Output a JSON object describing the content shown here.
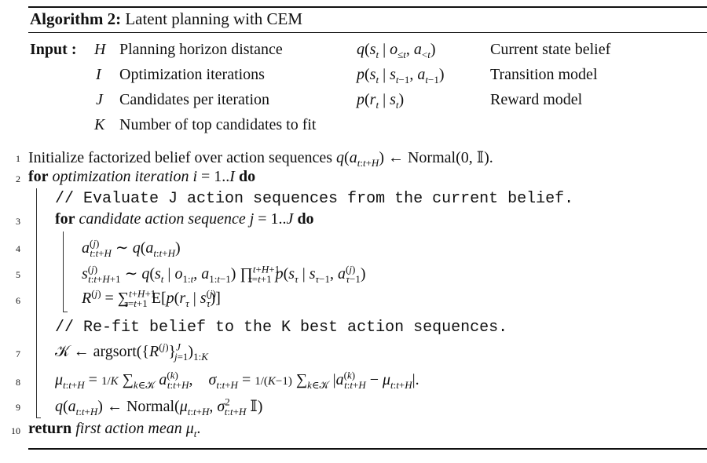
{
  "algorithm": {
    "label": "Algorithm 2:",
    "title": "Latent planning with CEM"
  },
  "inputs": {
    "label": "Input :",
    "rows": [
      {
        "sym": "H",
        "desc": "Planning horizon distance",
        "expr": "q(s_t | o_≤t, a_<t)",
        "expr_desc": "Current state belief"
      },
      {
        "sym": "I",
        "desc": "Optimization iterations",
        "expr": "p(s_t | s_t−1, a_t−1)",
        "expr_desc": "Transition model"
      },
      {
        "sym": "J",
        "desc": "Candidates per iteration",
        "expr": "p(r_t | s_t)",
        "expr_desc": "Reward model"
      },
      {
        "sym": "K",
        "desc": "Number of top candidates to fit",
        "expr": "",
        "expr_desc": ""
      }
    ]
  },
  "lines": [
    {
      "num": "1",
      "text": "Initialize factorized belief over action sequences q(a_t:t+H) ← Normal(0, 𝕀)."
    },
    {
      "num": "2",
      "kw": "for",
      "it": "optimization iteration",
      "text": "i = 1..I",
      "kw2": "do"
    },
    {
      "num": "",
      "comment": "// Evaluate J action sequences from the current belief."
    },
    {
      "num": "3",
      "kw": "for",
      "it": "candidate action sequence",
      "text": "j = 1..J",
      "kw2": "do"
    },
    {
      "num": "4",
      "text": "a^(j)_t:t+H ∼ q(a_t:t+H)"
    },
    {
      "num": "5",
      "text": "s^(j)_t:t+H+1 ∼ q(s_t | o_1:t, a_1:t−1) ∏ p(s_τ | s_τ−1, a^(j)_τ−1)"
    },
    {
      "num": "6",
      "text": "R^(j) = ∑ E[p(r_τ | s^(j)_τ)]"
    },
    {
      "num": "",
      "comment": "// Re-fit belief to the K best action sequences."
    },
    {
      "num": "7",
      "text": "𝒦 ← argsort({R^(j)}^J_j=1)_1:K"
    },
    {
      "num": "8",
      "text": "μ_t:t+H = 1/K ∑ a^(k)_t:t+H,   σ_t:t+H = 1/(K−1) ∑ |a^(k)_t:t+H − μ_t:t+H|."
    },
    {
      "num": "9",
      "text": "q(a_t:t+H) ← Normal(μ_t:t+H, σ²_t:t+H 𝕀)"
    },
    {
      "num": "10",
      "kw": "return",
      "it": "first action mean",
      "text": "μ_t."
    }
  ]
}
